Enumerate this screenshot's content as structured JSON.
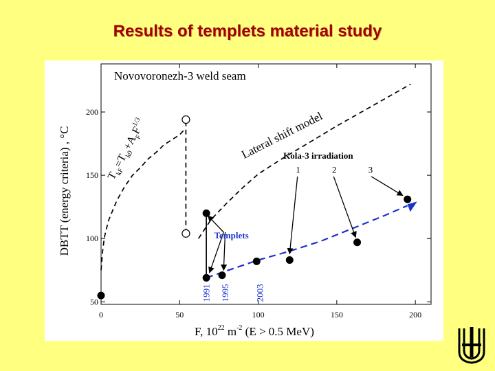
{
  "slide": {
    "title": "Results of templets material study"
  },
  "chart_data": {
    "type": "scatter",
    "title": "Novovoronezh-3 weld seam",
    "xlabel": "F, 10^22 m^-2 (E > 0.5 MeV)",
    "xlabel_parts": {
      "main": "F, 10",
      "exp1": "22",
      "unit": "m",
      "exp2": "-2",
      "energy": "(E > 0.5 MeV)"
    },
    "ylabel": "DBTT (energy criteria) , °C",
    "xlim": [
      0,
      210
    ],
    "ylim": [
      48,
      238
    ],
    "x_ticks": [
      "0",
      "50",
      "100",
      "150",
      "200"
    ],
    "y_ticks": [
      "50",
      "100",
      "150",
      "200"
    ],
    "grid": false,
    "series": [
      {
        "name": "Novovoronezh-3 weld seam",
        "marker": "filled-circle",
        "color": "#000000",
        "points": [
          {
            "x": 0,
            "y": 55
          },
          {
            "x": 67,
            "y": 69
          },
          {
            "x": 77,
            "y": 71
          },
          {
            "x": 99,
            "y": 82
          },
          {
            "x": 120,
            "y": 83
          },
          {
            "x": 163,
            "y": 97
          },
          {
            "x": 195,
            "y": 131
          },
          {
            "x": 67,
            "y": 120
          }
        ]
      },
      {
        "name": "open circles",
        "marker": "open-circle",
        "color": "#000000",
        "points": [
          {
            "x": 54,
            "y": 104
          },
          {
            "x": 54,
            "y": 194
          }
        ]
      }
    ],
    "curves": [
      {
        "name": "Lateral shift model",
        "style": "dashed",
        "color": "#000000",
        "points": [
          [
            62,
            100
          ],
          [
            70,
            115
          ],
          [
            80,
            128
          ],
          [
            90,
            140
          ],
          [
            100,
            151
          ],
          [
            115,
            163
          ],
          [
            130,
            174
          ],
          [
            150,
            189
          ],
          [
            170,
            203
          ],
          [
            197,
            222
          ]
        ]
      },
      {
        "name": "TkF = Tk0 + AF F^1/3",
        "style": "dashed",
        "color": "#000000",
        "points": [
          [
            0,
            75
          ],
          [
            1,
            90
          ],
          [
            2,
            100
          ],
          [
            3,
            106
          ],
          [
            5,
            115
          ],
          [
            10,
            130
          ],
          [
            15,
            141
          ],
          [
            20,
            150
          ],
          [
            25,
            156
          ],
          [
            30,
            163
          ],
          [
            35,
            168
          ],
          [
            40,
            174
          ],
          [
            45,
            178
          ],
          [
            50,
            182
          ],
          [
            53,
            186
          ]
        ]
      },
      {
        "name": "Kola-3 irradiation trend",
        "style": "dashed",
        "color": "#1a33cc",
        "points": [
          [
            67,
            69
          ],
          [
            100,
            83
          ],
          [
            120,
            90
          ],
          [
            140,
            98
          ],
          [
            160,
            108
          ],
          [
            180,
            118
          ],
          [
            195,
            126
          ]
        ]
      },
      {
        "name": "open-circle link",
        "style": "dashed",
        "color": "#000000",
        "points": [
          [
            54,
            104
          ],
          [
            54,
            194
          ]
        ]
      },
      {
        "name": "templet link",
        "style": "solid",
        "color": "#000000",
        "points": [
          [
            67,
            120
          ],
          [
            67,
            69
          ]
        ]
      }
    ],
    "annotations": {
      "equation": {
        "t": "T",
        "sub1": "kF",
        "eq": "=T",
        "sub2": "k0",
        "plus": "+A",
        "sub3": "F",
        "f": "F",
        "sup": "1/3"
      },
      "lateral_model": "Lateral shift model",
      "kola_title": "Kola-3 irradiation",
      "kola_labels": [
        "1",
        "2",
        "3"
      ],
      "templets": "Templets",
      "years": [
        "1991",
        "1995",
        "2003"
      ]
    }
  }
}
